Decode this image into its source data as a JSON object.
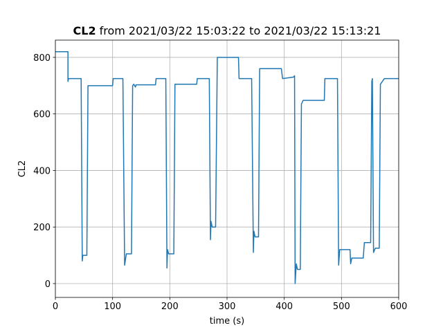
{
  "chart_data": {
    "type": "line",
    "title": [
      "CL2",
      "from 2021/03/22 15:03:22 to 2021/03/22 15:13:21"
    ],
    "xlabel": "time (s)",
    "ylabel": "CL2",
    "xlim": [
      0,
      600
    ],
    "xticks": [
      0,
      100,
      200,
      300,
      400,
      500,
      600
    ],
    "ylim": [
      -49,
      861
    ],
    "yticks": [
      0,
      200,
      400,
      600,
      800
    ],
    "grid": true,
    "x": [
      0,
      22,
      22,
      23,
      45,
      47,
      48,
      55,
      57,
      100,
      101,
      118,
      121,
      124,
      133,
      135,
      137,
      140,
      141,
      175,
      176,
      193,
      195,
      196,
      198,
      207,
      209,
      247,
      248,
      269,
      271,
      272,
      274,
      280,
      283,
      320,
      321,
      343,
      346,
      347,
      349,
      355,
      357,
      395,
      397,
      416,
      418,
      419,
      421,
      423,
      428,
      430,
      433,
      470,
      471,
      493,
      495,
      497,
      515,
      516,
      518,
      538,
      540,
      551,
      553,
      554,
      556,
      559,
      566,
      568,
      575,
      600
    ],
    "series": [
      {
        "color": "#1f77b4",
        "values": [
          820,
          820,
          715,
          725,
          725,
          80,
          100,
          100,
          700,
          700,
          725,
          725,
          65,
          105,
          105,
          700,
          705,
          695,
          703,
          703,
          725,
          725,
          55,
          120,
          105,
          105,
          705,
          705,
          725,
          725,
          155,
          220,
          200,
          200,
          800,
          800,
          725,
          725,
          110,
          185,
          165,
          165,
          760,
          760,
          725,
          730,
          735,
          0,
          70,
          50,
          50,
          635,
          648,
          648,
          725,
          725,
          65,
          120,
          120,
          70,
          90,
          90,
          145,
          145,
          715,
          725,
          110,
          125,
          125,
          705,
          725,
          725
        ]
      }
    ]
  }
}
